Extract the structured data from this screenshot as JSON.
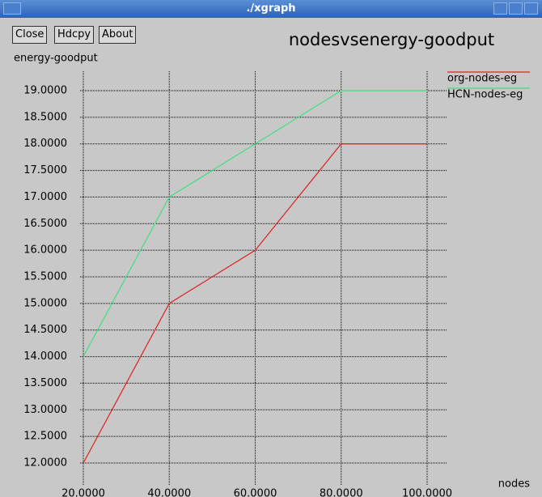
{
  "window": {
    "title": "./xgraph",
    "buttons": [
      "Close",
      "Hdcpy",
      "About"
    ]
  },
  "chart_data": {
    "type": "line",
    "title": "nodesvsenergy-goodput",
    "y_label": "energy-goodput",
    "x_label": "nodes",
    "x": [
      20,
      40,
      60,
      80,
      100
    ],
    "series": [
      {
        "name": "org-nodes-eg",
        "color": "#e02020",
        "values": [
          12,
          15,
          16,
          18,
          18
        ]
      },
      {
        "name": "HCN-nodes-eg",
        "color": "#40e080",
        "values": [
          14,
          17,
          18,
          19,
          19
        ]
      }
    ],
    "xlim": [
      20,
      100
    ],
    "xticks": [
      {
        "value": 20,
        "label": "20.0000"
      },
      {
        "value": 40,
        "label": "40.0000"
      },
      {
        "value": 60,
        "label": "60.0000"
      },
      {
        "value": 80,
        "label": "80.0000"
      },
      {
        "value": 100,
        "label": "100.0000"
      }
    ],
    "ylim": [
      12,
      19
    ],
    "yticks": [
      {
        "value": 12,
        "label": "12.0000"
      },
      {
        "value": 12.5,
        "label": "12.5000"
      },
      {
        "value": 13,
        "label": "13.0000"
      },
      {
        "value": 13.5,
        "label": "13.5000"
      },
      {
        "value": 14,
        "label": "14.0000"
      },
      {
        "value": 14.5,
        "label": "14.5000"
      },
      {
        "value": 15,
        "label": "15.0000"
      },
      {
        "value": 15.5,
        "label": "15.5000"
      },
      {
        "value": 16,
        "label": "16.0000"
      },
      {
        "value": 16.5,
        "label": "16.5000"
      },
      {
        "value": 17,
        "label": "17.0000"
      },
      {
        "value": 17.5,
        "label": "17.5000"
      },
      {
        "value": 18,
        "label": "18.0000"
      },
      {
        "value": 18.5,
        "label": "18.5000"
      },
      {
        "value": 19,
        "label": "19.0000"
      }
    ],
    "grid": true,
    "legend": "top-right"
  }
}
